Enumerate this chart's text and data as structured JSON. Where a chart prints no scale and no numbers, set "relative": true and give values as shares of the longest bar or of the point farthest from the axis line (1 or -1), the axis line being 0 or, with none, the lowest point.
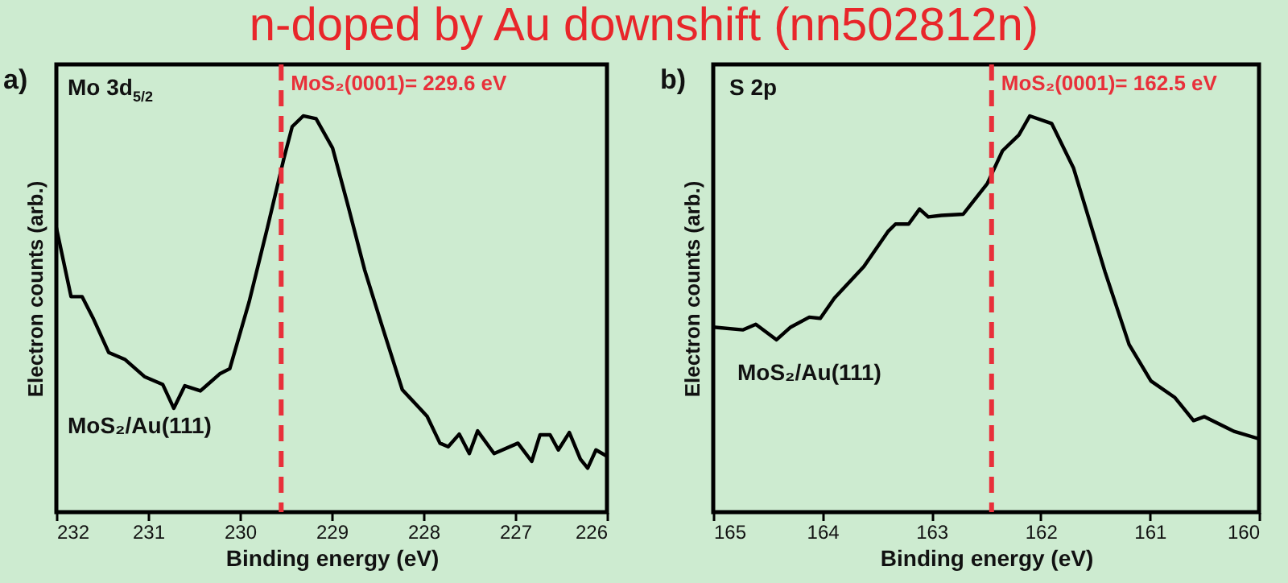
{
  "chart_data": [
    {
      "type": "line",
      "xlabel": "Binding energy (eV)",
      "ylabel": "Electron counts (arb.)",
      "relative": true,
      "annotations": [
        "n-doped by Au downshift (nn502812n)",
        "a)",
        "Mo 3d$_{5/2}$",
        "MoS₂/Au(111)"
      ],
      "xlim": [
        232,
        226
      ],
      "xticks": [
        232,
        231,
        230,
        229,
        228,
        227,
        226
      ],
      "x": [
        232,
        231.84,
        231.72,
        231.6,
        231.43,
        231.25,
        231.04,
        230.84,
        230.72,
        230.6,
        230.43,
        230.22,
        230.11,
        229.9,
        229.7,
        229.52,
        229.43,
        229.31,
        229.17,
        228.99,
        228.82,
        228.64,
        228.46,
        228.23,
        227.96,
        227.82,
        227.73,
        227.61,
        227.5,
        227.41,
        227.23,
        226.97,
        226.82,
        226.73,
        226.62,
        226.53,
        226.41,
        226.29,
        226.21,
        226.12,
        226.0
      ],
      "series": [
        {
          "color": "#000000",
          "values": [
            0.718,
            0.544,
            0.544,
            0.49,
            0.403,
            0.385,
            0.342,
            0.322,
            0.262,
            0.319,
            0.306,
            0.349,
            0.362,
            0.53,
            0.718,
            0.893,
            0.973,
            1.0,
            0.993,
            0.919,
            0.772,
            0.611,
            0.477,
            0.309,
            0.242,
            0.174,
            0.165,
            0.197,
            0.148,
            0.205,
            0.148,
            0.174,
            0.128,
            0.195,
            0.195,
            0.157,
            0.201,
            0.134,
            0.111,
            0.157,
            0.141
          ]
        }
      ],
      "ref_lines": [
        {
          "axis": "x",
          "value": 229.55,
          "label": "MoS₂(0001)= 229.6 eV",
          "color": "#e8303a",
          "line_style": "dashed"
        }
      ]
    },
    {
      "type": "line",
      "xlabel": "Binding energy (eV)",
      "ylabel": "Electron counts (arb.)",
      "relative": true,
      "annotations": [
        "b)",
        "S 2p",
        "MoS₂/Au(111)"
      ],
      "xlim": [
        165,
        160
      ],
      "xticks": [
        165,
        164,
        163,
        162,
        161,
        160
      ],
      "x": [
        165,
        164.73,
        164.61,
        164.42,
        164.29,
        164.12,
        164.02,
        163.89,
        163.62,
        163.4,
        163.33,
        163.21,
        163.11,
        163.03,
        162.91,
        162.71,
        162.49,
        162.35,
        162.2,
        162.1,
        161.9,
        161.7,
        161.41,
        161.19,
        160.99,
        160.77,
        160.6,
        160.5,
        160.23,
        160.0
      ],
      "series": [
        {
          "color": "#000000",
          "values": [
            0.467,
            0.46,
            0.474,
            0.435,
            0.467,
            0.492,
            0.489,
            0.54,
            0.62,
            0.708,
            0.727,
            0.727,
            0.765,
            0.745,
            0.749,
            0.752,
            0.829,
            0.912,
            0.952,
            1.0,
            0.981,
            0.869,
            0.606,
            0.423,
            0.331,
            0.289,
            0.231,
            0.241,
            0.204,
            0.185
          ]
        }
      ],
      "ref_lines": [
        {
          "axis": "x",
          "value": 162.45,
          "label": "MoS₂(0001)= 162.5 eV",
          "color": "#e8303a",
          "line_style": "dashed"
        }
      ]
    }
  ]
}
